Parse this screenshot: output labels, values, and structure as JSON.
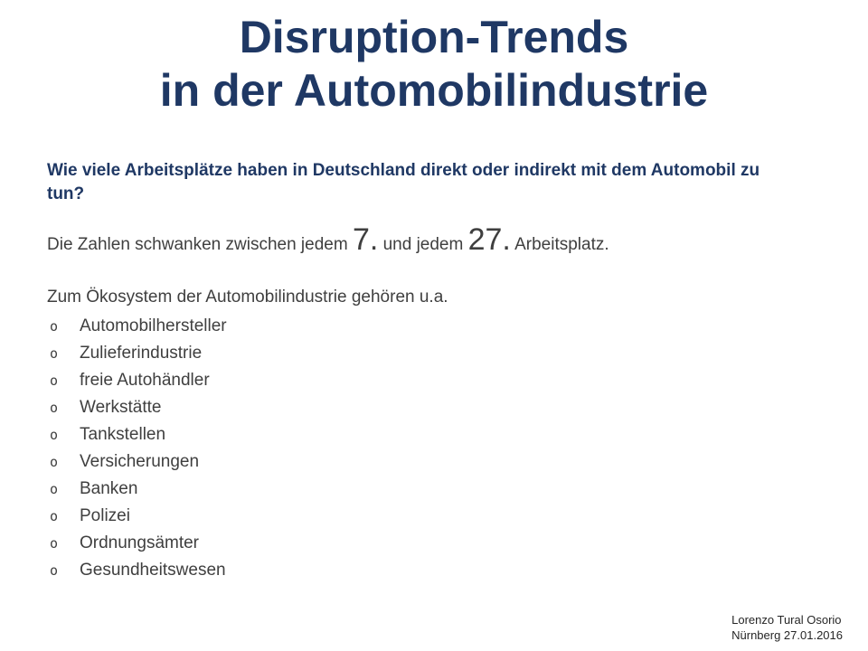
{
  "slide": {
    "title": {
      "line1": "Disruption-Trends",
      "line2": "in der Automobilindustrie"
    },
    "question": "Wie viele Arbeitsplätze haben in Deutschland direkt oder indirekt mit dem Automobil zu tun?",
    "stats": {
      "part1": "Die Zahlen schwanken zwischen jedem ",
      "big1": "7.",
      "part2": " und jedem ",
      "big2": "27.",
      "part3": " Arbeitsplatz."
    },
    "list": {
      "intro": "Zum Ökosystem der Automobilindustrie gehören u.a.",
      "bullet": "o",
      "items": [
        "Automobilhersteller",
        "Zulieferindustrie",
        "freie Autohändler",
        "Werkstätte",
        "Tankstellen",
        "Versicherungen",
        "Banken",
        "Polizei",
        "Ordnungsämter",
        "Gesundheitswesen"
      ]
    },
    "footer": {
      "author": "Lorenzo Tural Osorio",
      "location_date": "Nürnberg 27.01.2016"
    },
    "colors": {
      "title_blue": "#1f3864",
      "body_gray": "#3f3f3f"
    }
  }
}
